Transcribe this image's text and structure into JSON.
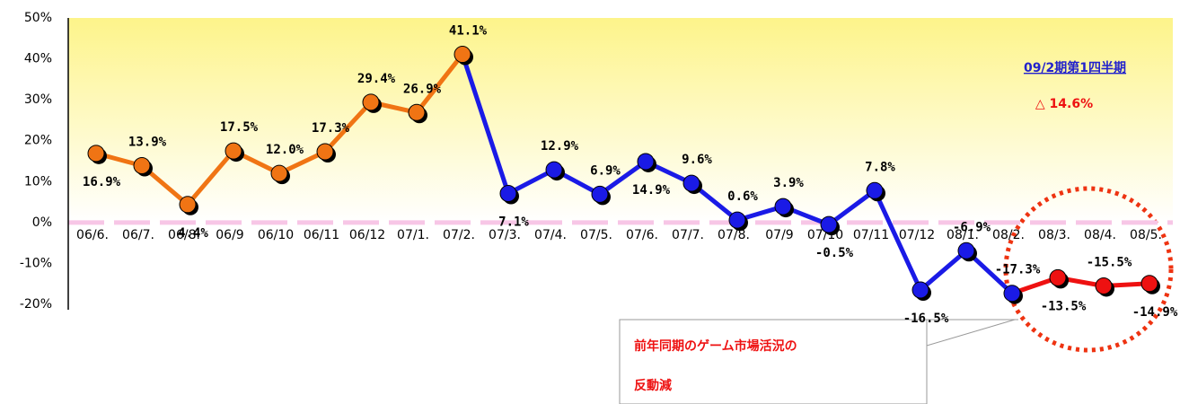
{
  "chart_data": {
    "type": "line",
    "categories": [
      "06/6.",
      "06/7.",
      "06/8.",
      "06/9",
      "06/10",
      "06/11",
      "06/12",
      "07/1.",
      "07/2.",
      "07/3.",
      "07/4.",
      "07/5.",
      "07/6.",
      "07/7.",
      "07/8.",
      "07/9",
      "07/10",
      "07/11",
      "07/12",
      "08/1.",
      "08/2.",
      "08/3.",
      "08/4.",
      "08/5."
    ],
    "values": [
      16.9,
      13.9,
      4.4,
      17.5,
      12.0,
      17.3,
      29.4,
      26.9,
      41.1,
      7.1,
      12.9,
      6.9,
      14.9,
      9.6,
      0.6,
      3.9,
      -0.5,
      7.8,
      -16.5,
      -6.9,
      -17.3,
      -13.5,
      -15.5,
      -14.9
    ],
    "value_labels": [
      "16.9%",
      "13.9%",
      "4.4%",
      "17.5%",
      "12.0%",
      "17.3%",
      "29.4%",
      "26.9%",
      "41.1%",
      "7.1%",
      "12.9%",
      "6.9%",
      "14.9%",
      "9.6%",
      "0.6%",
      "3.9%",
      "-0.5%",
      "7.8%",
      "-16.5%",
      "-6.9%",
      "-17.3%",
      "-13.5%",
      "-15.5%",
      "-14.9%"
    ],
    "point_colors": [
      "#f07414",
      "#f07414",
      "#f07414",
      "#f07414",
      "#f07414",
      "#f07414",
      "#f07414",
      "#f07414",
      "#f07414",
      "#1a1ae6",
      "#1a1ae6",
      "#1a1ae6",
      "#1a1ae6",
      "#1a1ae6",
      "#1a1ae6",
      "#1a1ae6",
      "#1a1ae6",
      "#1a1ae6",
      "#1a1ae6",
      "#1a1ae6",
      "#1a1ae6",
      "#ee1111",
      "#ee1111",
      "#ee1111"
    ],
    "ylim": [
      -20,
      50
    ],
    "yticks": [
      {
        "value": 50,
        "label": "50%"
      },
      {
        "value": 40,
        "label": "40%"
      },
      {
        "value": 30,
        "label": "30%"
      },
      {
        "value": 20,
        "label": "20%"
      },
      {
        "value": 10,
        "label": "10%"
      },
      {
        "value": 0,
        "label": "0%"
      },
      {
        "value": -10,
        "label": "-10%"
      },
      {
        "value": -20,
        "label": "-20%"
      }
    ],
    "annotations": {
      "period": "09/2期第1四半期",
      "change": "△ 14.6%",
      "callout": [
        "前年同期のゲーム市場活況の",
        "反動減"
      ]
    }
  }
}
